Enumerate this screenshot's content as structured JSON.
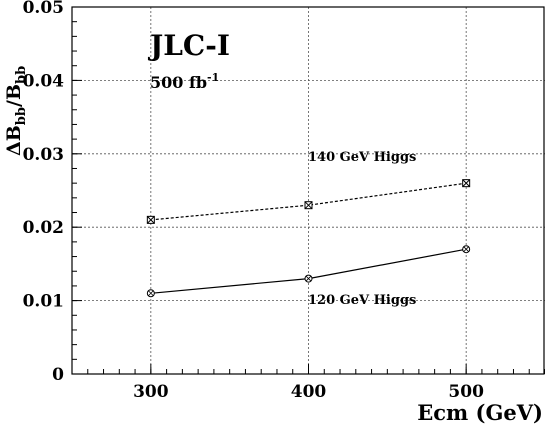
{
  "chart_data": {
    "type": "line",
    "xlabel": "Ecm (GeV)",
    "ylabel": "ΔB_bb/B_bb",
    "ylabel_parts": {
      "a": "ΔB",
      "b": "bb",
      "c": "/B",
      "d": "bb"
    },
    "xlim": [
      250,
      550
    ],
    "ylim": [
      0,
      0.05
    ],
    "x_ticks": [
      300,
      400,
      500
    ],
    "x_tick_labels": [
      "300",
      "400",
      "500"
    ],
    "y_ticks": [
      0,
      0.01,
      0.02,
      0.03,
      0.04,
      0.05
    ],
    "y_tick_labels": [
      "0",
      "0.01",
      "0.02",
      "0.03",
      "0.04",
      "0.05"
    ],
    "grid": true,
    "annotations": {
      "experiment": "JLC-I",
      "lumi_main": "500 fb",
      "lumi_sup": "-1"
    },
    "series": [
      {
        "name": "140 GeV Higgs",
        "x": [
          300,
          400,
          500
        ],
        "values": [
          0.021,
          0.023,
          0.026
        ],
        "style": "dashed",
        "marker": "x-square"
      },
      {
        "name": "120 GeV Higgs",
        "x": [
          300,
          400,
          500
        ],
        "values": [
          0.011,
          0.013,
          0.017
        ],
        "style": "solid",
        "marker": "circle"
      }
    ]
  }
}
